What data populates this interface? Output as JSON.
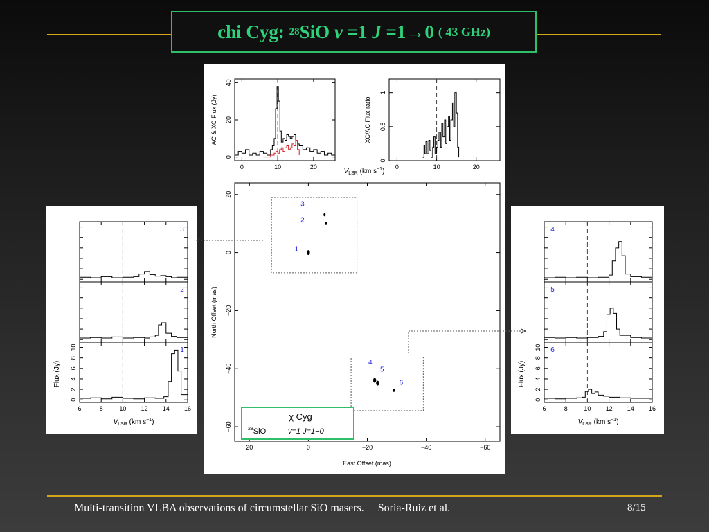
{
  "title": {
    "name": "chi Cyg:",
    "iso_sup": "28",
    "molecule": "SiO",
    "v_label": "v",
    "v_value": "=1",
    "j_label": "J",
    "transition": "=1→0",
    "freq": "( 43 GHz)"
  },
  "footer": {
    "text": "Multi-transition VLBA observations of circumstellar SiO masers.     Soria-Ruiz et al.",
    "page": "8/15"
  },
  "colors": {
    "rule": "#d4a61c",
    "title_green": "#2fd17a",
    "spot_label": "#1d1dd8",
    "xc_red": "#d42020"
  },
  "chart_data": [
    {
      "id": "top-left",
      "type": "line",
      "ylabel": "AC & XC Flux (Jy)",
      "xlabel": "V_LSR (km s^-1)",
      "xlim": [
        -2,
        26
      ],
      "ylim": [
        -2,
        42
      ],
      "xticks": [
        "0",
        "10",
        "20"
      ],
      "xtick_values": [
        0,
        10,
        20
      ],
      "yticks": [
        "0",
        "20",
        "40"
      ],
      "ytick_values": [
        0,
        20,
        40
      ],
      "vline": 10,
      "series": [
        {
          "color": "#000000",
          "x": [
            -2,
            -1,
            0,
            1,
            2,
            3,
            4,
            5,
            6,
            7,
            8,
            8.5,
            9,
            9.4,
            9.8,
            10.2,
            10.6,
            11,
            11.5,
            12,
            12.5,
            13,
            13.5,
            14,
            14.5,
            15,
            15.5,
            16,
            17,
            18,
            19,
            20,
            21,
            22,
            23,
            24,
            25,
            26
          ],
          "y": [
            1,
            3,
            2,
            4,
            1,
            2,
            1,
            3,
            2,
            1,
            4,
            6,
            10,
            26,
            38,
            30,
            14,
            8,
            10,
            9,
            12,
            11,
            10,
            11,
            12,
            9,
            7,
            6,
            4,
            5,
            3,
            4,
            2,
            3,
            1,
            2,
            1,
            1
          ]
        },
        {
          "color": "#d42020",
          "x": [
            6,
            7,
            8,
            9,
            9.5,
            10,
            10.5,
            11,
            11.5,
            12,
            12.5,
            13,
            13.5,
            14,
            14.5,
            15,
            15.5,
            16
          ],
          "y": [
            0,
            0,
            1,
            2,
            3,
            2,
            4,
            5,
            3,
            5,
            6,
            4,
            5,
            7,
            6,
            9,
            4,
            1
          ]
        }
      ]
    },
    {
      "id": "top-right",
      "type": "line",
      "ylabel": "XC/AC Flux ratio",
      "xlabel": "V_LSR (km s^-1)",
      "xlim": [
        -2,
        26
      ],
      "ylim": [
        0,
        1.2
      ],
      "xticks": [
        "0",
        "10",
        "20"
      ],
      "xtick_values": [
        0,
        10,
        20
      ],
      "yticks": [
        "0",
        "0.5",
        "1"
      ],
      "ytick_values": [
        0,
        0.5,
        1
      ],
      "vline": 10,
      "series": [
        {
          "color": "#000000",
          "x": [
            6.5,
            6.8,
            7,
            7.3,
            7.6,
            8,
            8.3,
            8.6,
            9,
            9.3,
            9.6,
            10,
            10.3,
            10.6,
            11,
            11.3,
            11.6,
            12,
            12.3,
            12.6,
            13,
            13.3,
            13.6,
            14,
            14.3,
            14.6,
            15,
            15.3,
            15.6
          ],
          "y": [
            0.05,
            0.22,
            0.1,
            0.28,
            0.1,
            0.3,
            0.15,
            0.05,
            0.2,
            0.35,
            0.1,
            0.2,
            0.3,
            0.42,
            0.2,
            0.55,
            0.35,
            0.6,
            0.25,
            0.5,
            0.65,
            0.3,
            0.6,
            0.85,
            0.5,
            1.0,
            0.7,
            0.2,
            0.05
          ]
        }
      ]
    },
    {
      "id": "map",
      "type": "scatter",
      "xlabel": "East Offset (mas)",
      "ylabel": "North Offset (mas)",
      "xlim": [
        25,
        -65
      ],
      "ylim": [
        -65,
        24
      ],
      "xticks": [
        "20",
        "0",
        "−20",
        "−40",
        "−60"
      ],
      "xtick_values": [
        20,
        0,
        -20,
        -40,
        -60
      ],
      "yticks": [
        "20",
        "0",
        "−20",
        "−40",
        "−60"
      ],
      "ytick_values": [
        20,
        0,
        -20,
        -40,
        -60
      ],
      "legend_box": {
        "star": "χ  Cyg",
        "iso": "28",
        "line": "SiO",
        "trans": "v=1  J=1−0"
      },
      "spots": [
        {
          "id": "1",
          "x": 0,
          "y": 0
        },
        {
          "id": "2",
          "x": -6,
          "y": 10
        },
        {
          "id": "3",
          "x": -5.5,
          "y": 13
        },
        {
          "id": "4",
          "x": -22.5,
          "y": -44
        },
        {
          "id": "5",
          "x": -23.5,
          "y": -45
        },
        {
          "id": "6",
          "x": -29,
          "y": -47.5
        }
      ],
      "labels": [
        {
          "text": "3",
          "x": 2,
          "y": 16
        },
        {
          "text": "2",
          "x": 2,
          "y": 10.5
        },
        {
          "text": "1",
          "x": 4,
          "y": 0.5
        },
        {
          "text": "4",
          "x": -21,
          "y": -38.5
        },
        {
          "text": "5",
          "x": -25,
          "y": -41
        },
        {
          "text": "6",
          "x": -31.5,
          "y": -45.5
        }
      ],
      "groups": [
        {
          "x1": 12.5,
          "x2": -16.5,
          "y1": 19,
          "y2": -7
        },
        {
          "x1": -14.5,
          "x2": -39,
          "y1": -36,
          "y2": -54.5
        }
      ]
    },
    {
      "id": "left-stack",
      "type": "line",
      "ylabel": "Flux (Jy)",
      "xlabel": "V_LSR (km s^-1)",
      "xlim": [
        6,
        16
      ],
      "xticks": [
        "6",
        "8",
        "10",
        "12",
        "14",
        "16"
      ],
      "xtick_values": [
        6,
        8,
        10,
        12,
        14,
        16
      ],
      "yticks": [
        "0",
        "2",
        "4",
        "6",
        "8",
        "10"
      ],
      "ytick_values": [
        0,
        2,
        4,
        6,
        8,
        10
      ],
      "vline": 10,
      "ylim": [
        -0.5,
        11
      ],
      "subpanels": [
        {
          "label": "3",
          "x": [
            6,
            7,
            8,
            9,
            10,
            11,
            11.5,
            12,
            12.5,
            13,
            13.5,
            14,
            14.5,
            15,
            16
          ],
          "y": [
            0.4,
            0.3,
            0.5,
            0.3,
            0.4,
            0.5,
            1.0,
            1.5,
            0.9,
            0.6,
            0.7,
            0.5,
            0.3,
            0.4,
            0.3
          ]
        },
        {
          "label": "2",
          "x": [
            6,
            7,
            8,
            9,
            10,
            11,
            12,
            12.5,
            13,
            13.3,
            13.6,
            14,
            14.5,
            15,
            16
          ],
          "y": [
            0.3,
            0.4,
            0.3,
            0.5,
            0.3,
            0.4,
            0.3,
            0.5,
            0.8,
            2.8,
            3.2,
            1.2,
            0.6,
            0.4,
            0.3
          ]
        },
        {
          "label": "1",
          "x": [
            6,
            7,
            8,
            9,
            10,
            11,
            12,
            13,
            13.8,
            14.2,
            14.5,
            14.8,
            15.1,
            15.4,
            16
          ],
          "y": [
            0.3,
            0.4,
            0.2,
            0.5,
            0.3,
            0.2,
            0.4,
            0.3,
            0.6,
            3.5,
            8.8,
            9.5,
            5.5,
            1.0,
            0.3
          ]
        }
      ]
    },
    {
      "id": "right-stack",
      "type": "line",
      "ylabel": "Flux (Jy)",
      "xlabel": "V_LSR (km s^-1)",
      "xlim": [
        6,
        16
      ],
      "xticks": [
        "6",
        "8",
        "10",
        "12",
        "14",
        "16"
      ],
      "xtick_values": [
        6,
        8,
        10,
        12,
        14,
        16
      ],
      "yticks": [
        "0",
        "2",
        "4",
        "6",
        "8",
        "10"
      ],
      "ytick_values": [
        0,
        2,
        4,
        6,
        8,
        10
      ],
      "vline": 10,
      "ylim": [
        -0.5,
        11
      ],
      "subpanels": [
        {
          "label": "4",
          "x": [
            6,
            7,
            8,
            9,
            10,
            11,
            12,
            12.3,
            12.6,
            12.9,
            13.2,
            13.5,
            14,
            15,
            16
          ],
          "y": [
            0.3,
            0.4,
            0.3,
            0.4,
            0.3,
            0.4,
            0.8,
            3.5,
            6.0,
            7.2,
            4.5,
            1.0,
            0.5,
            0.4,
            0.3
          ]
        },
        {
          "label": "5",
          "x": [
            6,
            7,
            8,
            9,
            10,
            11,
            11.5,
            11.8,
            12.1,
            12.4,
            12.7,
            13,
            14,
            15,
            16
          ],
          "y": [
            0.4,
            0.3,
            0.4,
            0.3,
            0.4,
            0.6,
            1.5,
            4.8,
            6.0,
            5.0,
            2.0,
            0.8,
            0.4,
            0.3,
            0.3
          ]
        },
        {
          "label": "6",
          "x": [
            6,
            7,
            8,
            9,
            9.5,
            9.8,
            10.1,
            10.4,
            10.7,
            11,
            11.5,
            12,
            13,
            14,
            16
          ],
          "y": [
            0.3,
            0.2,
            0.3,
            0.4,
            0.5,
            1.6,
            2.0,
            1.2,
            1.5,
            0.9,
            0.7,
            0.5,
            0.4,
            0.3,
            0.3
          ]
        }
      ]
    }
  ]
}
